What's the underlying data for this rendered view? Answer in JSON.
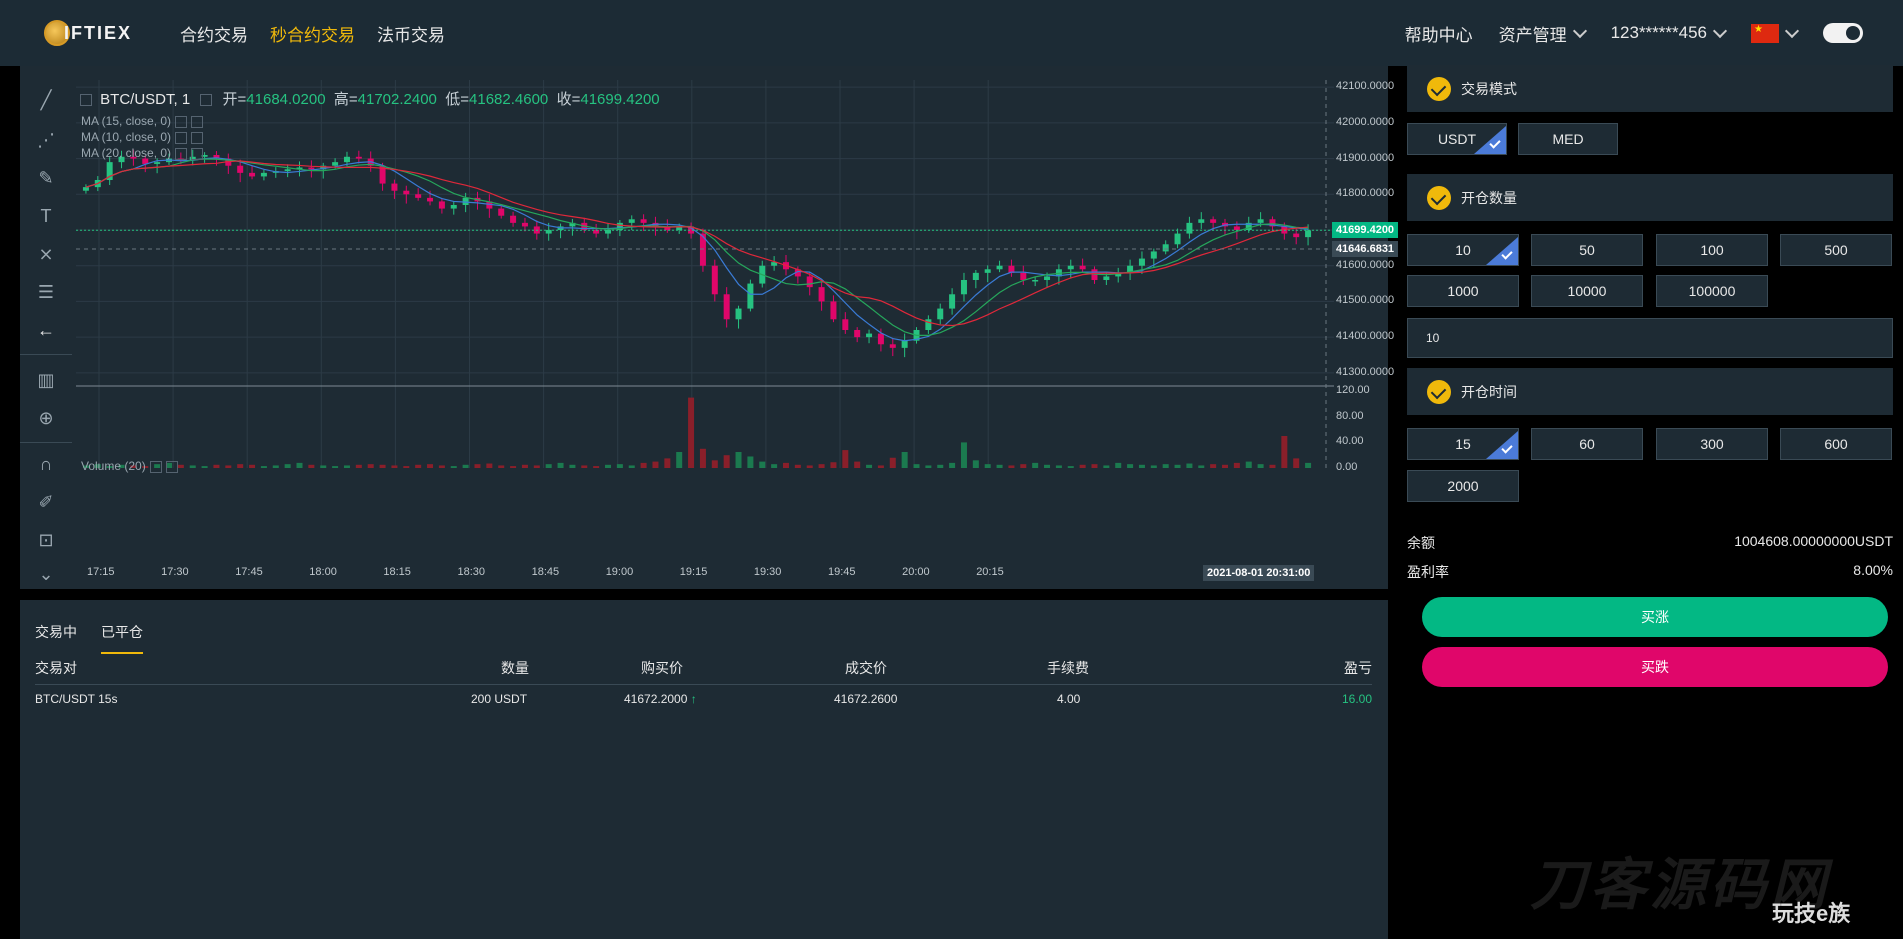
{
  "brand": {
    "logo_text": "IFTIEX"
  },
  "nav": {
    "links": [
      "合约交易",
      "秒合约交易",
      "法币交易"
    ],
    "active_index": 1,
    "help": "帮助中心",
    "assets": "资产管理",
    "user": "123******456"
  },
  "chart": {
    "symbol": "BTC/USDT, 1",
    "open_label": "开=",
    "open": "41684.0200",
    "high_label": "高=",
    "high": "41702.2400",
    "low_label": "低=",
    "low": "41682.4600",
    "close_label": "收=",
    "close": "41699.4200",
    "ma_lines": [
      "MA (15, close, 0)",
      "MA (10, close, 0)",
      "MA (20, close, 0)"
    ],
    "volume_label": "Volume (20)",
    "current_price_tag": "41699.4200",
    "ref_price_tag": "41646.6831",
    "crosshair_time": "2021-08-01 20:31:00"
  },
  "chart_data": {
    "type": "candlestick",
    "title": "BTC/USDT, 1",
    "price_axis_ticks": [
      "42100.0000",
      "42000.0000",
      "41900.0000",
      "41800.0000",
      "41700.0000",
      "41600.0000",
      "41500.0000",
      "41400.0000",
      "41300.0000"
    ],
    "volume_axis_ticks": [
      "120.00",
      "80.00",
      "40.00",
      "0.00"
    ],
    "time_ticks": [
      "17:15",
      "17:30",
      "17:45",
      "18:00",
      "18:15",
      "18:30",
      "18:45",
      "19:00",
      "19:15",
      "19:30",
      "19:45",
      "20:00",
      "20:15"
    ],
    "ylim": [
      41280,
      42120
    ],
    "volume_ylim": [
      0,
      125
    ],
    "close_series": [
      41820,
      41840,
      41890,
      41905,
      41900,
      41885,
      41890,
      41900,
      41895,
      41905,
      41910,
      41900,
      41880,
      41860,
      41850,
      41860,
      41865,
      41870,
      41875,
      41870,
      41880,
      41890,
      41905,
      41900,
      41880,
      41830,
      41810,
      41800,
      41790,
      41780,
      41760,
      41770,
      41790,
      41780,
      41760,
      41740,
      41720,
      41710,
      41690,
      41700,
      41710,
      41720,
      41700,
      41690,
      41700,
      41720,
      41730,
      41720,
      41710,
      41700,
      41710,
      41690,
      41600,
      41520,
      41450,
      41480,
      41550,
      41600,
      41610,
      41590,
      41570,
      41540,
      41500,
      41450,
      41420,
      41400,
      41410,
      41380,
      41370,
      41390,
      41420,
      41450,
      41480,
      41520,
      41560,
      41580,
      41590,
      41600,
      41580,
      41560,
      41560,
      41570,
      41590,
      41600,
      41590,
      41560,
      41570,
      41580,
      41600,
      41620,
      41640,
      41660,
      41690,
      41720,
      41730,
      41720,
      41710,
      41700,
      41720,
      41730,
      41710,
      41690,
      41680,
      41699
    ],
    "volume_series": [
      4,
      6,
      3,
      5,
      4,
      3,
      6,
      8,
      5,
      4,
      3,
      5,
      4,
      6,
      5,
      3,
      4,
      6,
      8,
      5,
      4,
      3,
      4,
      5,
      6,
      5,
      4,
      3,
      5,
      6,
      4,
      3,
      5,
      6,
      7,
      4,
      3,
      5,
      4,
      6,
      8,
      5,
      4,
      3,
      5,
      6,
      4,
      8,
      10,
      15,
      25,
      110,
      30,
      12,
      20,
      25,
      18,
      10,
      6,
      8,
      5,
      4,
      6,
      9,
      28,
      10,
      5,
      4,
      16,
      25,
      6,
      4,
      5,
      8,
      40,
      12,
      6,
      5,
      4,
      6,
      8,
      5,
      4,
      3,
      5,
      6,
      4,
      8,
      6,
      5,
      4,
      6,
      5,
      7,
      4,
      6,
      5,
      8,
      10,
      6,
      5,
      50,
      15,
      8
    ]
  },
  "orders": {
    "tabs": [
      "交易中",
      "已平仓"
    ],
    "active_tab": 1,
    "headers": [
      "交易对",
      "数量",
      "购买价",
      "成交价",
      "手续费",
      "盈亏"
    ],
    "rows": [
      {
        "pair": "BTC/USDT 15s",
        "amount": "200 USDT",
        "buy_price": "41672.2000",
        "deal_price": "41672.2600",
        "fee": "4.00",
        "pnl": "16.00"
      }
    ]
  },
  "trade": {
    "mode_title": "交易模式",
    "modes": [
      "USDT",
      "MED"
    ],
    "mode_selected": 0,
    "qty_title": "开仓数量",
    "qtys": [
      "10",
      "50",
      "100",
      "500",
      "1000",
      "10000",
      "100000"
    ],
    "qty_selected": 0,
    "qty_input": "10",
    "time_title": "开仓时间",
    "times": [
      "15",
      "60",
      "300",
      "600",
      "2000"
    ],
    "time_selected": 0,
    "balance_label": "余额",
    "balance": "1004608.00000000USDT",
    "rate_label": "盈利率",
    "rate": "8.00%",
    "buy_up": "买涨",
    "buy_down": "买跌"
  },
  "watermark": {
    "main": "刀客源码网",
    "small": "玩技e族"
  },
  "colors": {
    "up": "#26c281",
    "down": "#e0066a",
    "accent": "#f0b90b",
    "select": "#4b7bd8"
  }
}
